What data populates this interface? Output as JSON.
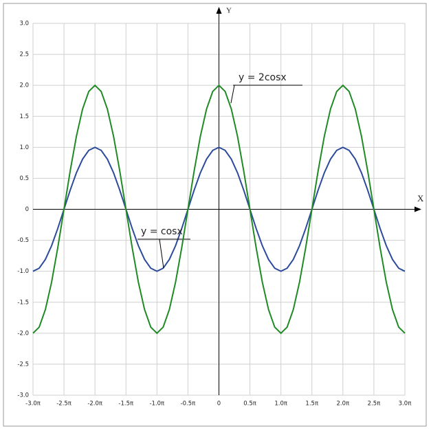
{
  "chart_data": {
    "type": "line",
    "x_label": "X",
    "y_label": "Y",
    "x": [
      -3,
      -2.9,
      -2.8,
      -2.7,
      -2.6,
      -2.5,
      -2.4,
      -2.3,
      -2.2,
      -2.1,
      -2,
      -1.9,
      -1.8,
      -1.7,
      -1.6,
      -1.5,
      -1.4,
      -1.3,
      -1.2,
      -1.1,
      -1,
      -0.9,
      -0.8,
      -0.7,
      -0.6,
      -0.5,
      -0.4,
      -0.3,
      -0.2,
      -0.1,
      0,
      0.1,
      0.2,
      0.3,
      0.4,
      0.5,
      0.6,
      0.7,
      0.8,
      0.9,
      1,
      1.1,
      1.2,
      1.3,
      1.4,
      1.5,
      1.6,
      1.7,
      1.8,
      1.9,
      2,
      2.1,
      2.2,
      2.3,
      2.4,
      2.5,
      2.6,
      2.7,
      2.8,
      2.9,
      3
    ],
    "series": [
      {
        "name": "y = cosx",
        "color": "#2b4a9c",
        "values": [
          -1,
          -0.951,
          -0.809,
          -0.588,
          -0.309,
          0,
          0.309,
          0.588,
          0.809,
          0.951,
          1,
          0.951,
          0.809,
          0.588,
          0.309,
          0,
          -0.309,
          -0.588,
          -0.809,
          -0.951,
          -1,
          -0.951,
          -0.809,
          -0.588,
          -0.309,
          0,
          0.309,
          0.588,
          0.809,
          0.951,
          1,
          0.951,
          0.809,
          0.588,
          0.309,
          0,
          -0.309,
          -0.588,
          -0.809,
          -0.951,
          -1,
          -0.951,
          -0.809,
          -0.588,
          -0.309,
          0,
          0.309,
          0.588,
          0.809,
          0.951,
          1,
          0.951,
          0.809,
          0.588,
          0.309,
          0,
          -0.309,
          -0.588,
          -0.809,
          -0.951,
          -1
        ]
      },
      {
        "name": "y = 2cosx",
        "color": "#1f8a24",
        "values": [
          -2,
          -1.902,
          -1.618,
          -1.176,
          -0.618,
          0,
          0.618,
          1.176,
          1.618,
          1.902,
          2,
          1.902,
          1.618,
          1.176,
          0.618,
          0,
          -0.618,
          -1.176,
          -1.618,
          -1.902,
          -2,
          -1.902,
          -1.618,
          -1.176,
          -0.618,
          0,
          0.618,
          1.176,
          1.618,
          1.902,
          2,
          1.902,
          1.618,
          1.176,
          0.618,
          0,
          -0.618,
          -1.176,
          -1.618,
          -1.902,
          -2,
          -1.902,
          -1.618,
          -1.176,
          -0.618,
          0,
          0.618,
          1.176,
          1.618,
          1.902,
          2,
          1.902,
          1.618,
          1.176,
          0.618,
          0,
          -0.618,
          -1.176,
          -1.618,
          -1.902,
          -2
        ]
      }
    ],
    "xlim": [
      -3,
      3
    ],
    "xticks": [
      {
        "value": -3,
        "label": "-3.0π"
      },
      {
        "value": -2.5,
        "label": "-2.5π"
      },
      {
        "value": -2,
        "label": "-2.0π"
      },
      {
        "value": -1.5,
        "label": "-1.5π"
      },
      {
        "value": -1,
        "label": "-1.0π"
      },
      {
        "value": -0.5,
        "label": "-0.5π"
      },
      0,
      {
        "value": 0.5,
        "label": "0.5π"
      },
      {
        "value": 1,
        "label": "1.0π"
      },
      {
        "value": 1.5,
        "label": "1.5π"
      },
      {
        "value": 2,
        "label": "2.0π"
      },
      {
        "value": 2.5,
        "label": "2.5π"
      },
      {
        "value": 3,
        "label": "3.0π"
      }
    ],
    "ylim": [
      -3,
      3
    ],
    "yticks": [
      {
        "value": 3,
        "label": "3.0"
      },
      2.5,
      {
        "value": 2,
        "label": "2.0"
      },
      1.5,
      {
        "value": 1,
        "label": "1.0"
      },
      0.5,
      0,
      -0.5,
      {
        "value": -1,
        "label": "-1.0"
      },
      -1.5,
      {
        "value": -2,
        "label": "-2.0"
      },
      -2.5,
      {
        "value": -3,
        "label": "-3.0"
      }
    ],
    "grid": true
  }
}
